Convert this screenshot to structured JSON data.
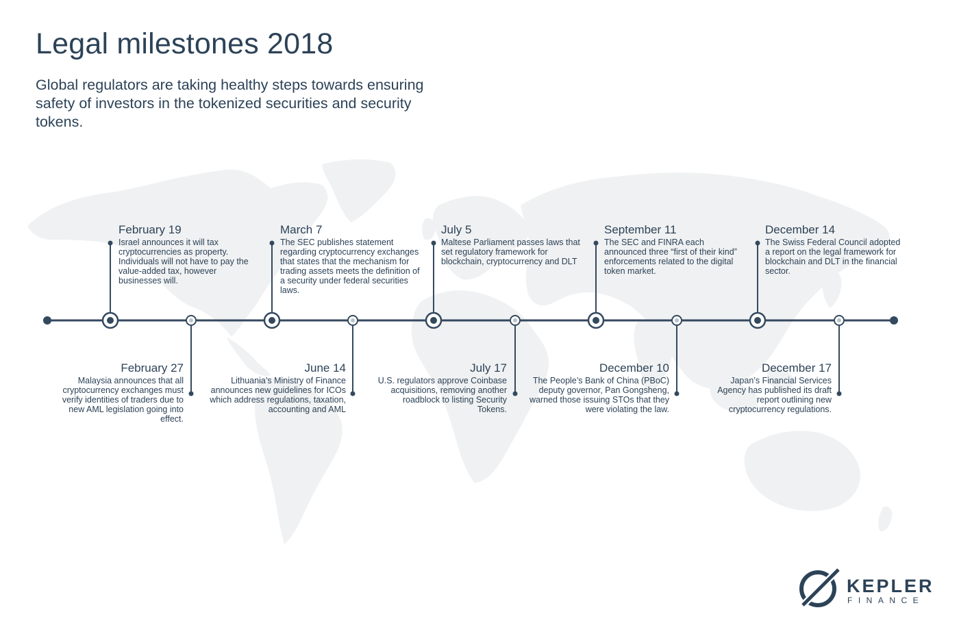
{
  "header": {
    "title": "Legal milestones 2018",
    "subtitle": "Global regulators are taking healthy steps towards ensuring safety of investors in the tokenized securities and security tokens."
  },
  "events_top": [
    {
      "date": "February 19",
      "desc": "Israel announces it will tax cryptocurrencies as property. Individuals will not have to pay the value-added tax, however businesses will."
    },
    {
      "date": "March 7",
      "desc": "The SEC publishes statement regarding cryptocurrency exchanges that states that the mechanism for trading assets meets the definition of a security under federal securities laws."
    },
    {
      "date": "July 5",
      "desc": "Maltese Parliament passes laws that set regulatory framework for blockchain, cryptocurrency and DLT"
    },
    {
      "date": "September 11",
      "desc": "The SEC and FINRA each announced three “first of their kind” enforcements related to the digital token market."
    },
    {
      "date": "December 14",
      "desc": "The Swiss Federal Council adopted a report on the legal framework for blockchain and DLT in the financial sector."
    }
  ],
  "events_bottom": [
    {
      "date": "February 27",
      "desc": "Malaysia announces that all cryptocurrency exchanges must verify identities of traders due to new AML legislation going into effect."
    },
    {
      "date": "June 14",
      "desc": "Lithuania’s Ministry of Finance announces new guidelines for ICOs which address regulations, taxation, accounting and AML"
    },
    {
      "date": "July 17",
      "desc": "U.S. regulators approve Coinbase acquisitions, removing another roadblock to listing Security Tokens."
    },
    {
      "date": "December 10",
      "desc": "The People’s Bank of China (PBoC) deputy governor, Pan Gongsheng, warned those issuing STOs that they were violating the law."
    },
    {
      "date": "December 17",
      "desc": "Japan’s Financial Services Agency has published its draft report outlining new cryptocurrency regulations."
    }
  ],
  "logo": {
    "word": "KEPLER",
    "sub": "FINANCE"
  },
  "colors": {
    "primary": "#2c4257",
    "line": "#34495e",
    "map": "#f0f1f2",
    "node_light": "#b9c2cb"
  }
}
